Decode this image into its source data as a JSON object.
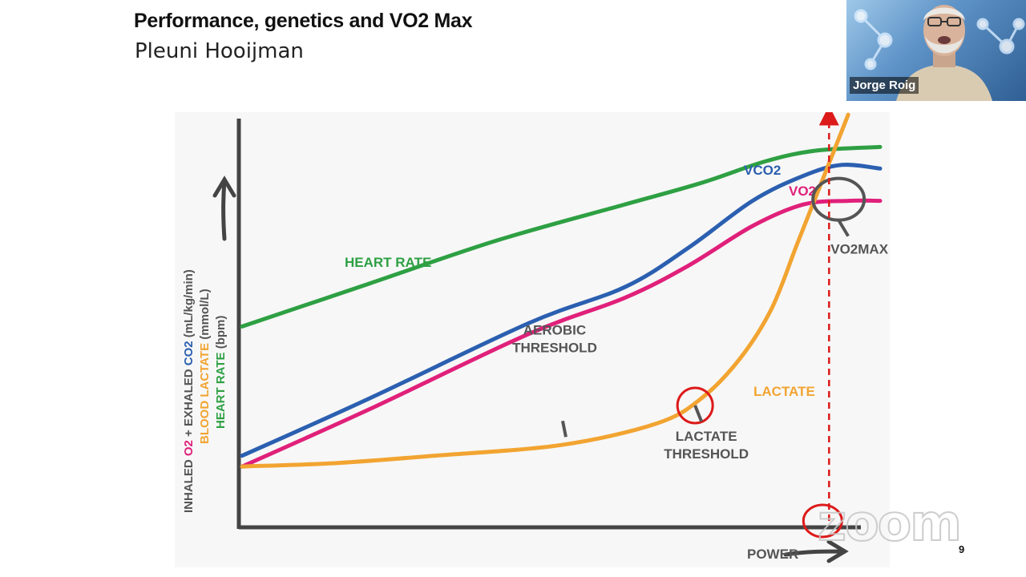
{
  "slide": {
    "title": "Performance, genetics and VO2 Max",
    "author": "Pleuni Hooijman",
    "page_number": "9"
  },
  "video": {
    "participant_name": "Jorge Roig"
  },
  "watermark": "zoom",
  "colors": {
    "heart_rate": "#2ea043",
    "vco2": "#2b5fb0",
    "vo2": "#e0207a",
    "lactate": "#f2a431",
    "axis": "#444444",
    "annotation": "#dd1a1a",
    "label_gray": "#555555"
  },
  "chart_data": {
    "type": "line",
    "xlabel": "POWER",
    "ylabel_lines": [
      {
        "parts": [
          {
            "text": "INHALED ",
            "color": "#555555"
          },
          {
            "text": "O2",
            "color": "#e0207a"
          },
          {
            "text": " + EXHALED ",
            "color": "#555555"
          },
          {
            "text": "CO2",
            "color": "#2b5fb0"
          },
          {
            "text": " (mL/kg/min)",
            "color": "#555555"
          }
        ]
      },
      {
        "parts": [
          {
            "text": "BLOOD LACTATE",
            "color": "#f2a431"
          },
          {
            "text": " (mmol/L)",
            "color": "#555555"
          }
        ]
      },
      {
        "parts": [
          {
            "text": "HEART RATE",
            "color": "#2ea043"
          },
          {
            "text": " (bpm)",
            "color": "#555555"
          }
        ]
      }
    ],
    "x_range": [
      0,
      100
    ],
    "y_range": [
      0,
      100
    ],
    "series": [
      {
        "name": "HEART RATE",
        "label": "HEART RATE",
        "color": "#2ea043",
        "x": [
          0,
          20,
          40,
          60,
          72,
          82,
          90,
          100
        ],
        "y": [
          47,
          59,
          71,
          81,
          87,
          93,
          96,
          97
        ]
      },
      {
        "name": "VCO2",
        "label": "VCO2",
        "color": "#2b5fb0",
        "x": [
          0,
          20,
          45,
          60,
          70,
          80,
          88,
          94,
          100
        ],
        "y": [
          11,
          27,
          48,
          58,
          69,
          82,
          89,
          92,
          91
        ]
      },
      {
        "name": "VO2",
        "label": "VO2",
        "color": "#e0207a",
        "x": [
          0,
          20,
          45,
          60,
          70,
          80,
          88,
          95,
          100
        ],
        "y": [
          8,
          24,
          45,
          55,
          64,
          75,
          81,
          82,
          82
        ]
      },
      {
        "name": "LACTATE",
        "label": "LACTATE",
        "color": "#f2a431",
        "x": [
          0,
          15,
          30,
          50,
          65,
          72,
          78,
          83,
          87,
          91,
          95
        ],
        "y": [
          8,
          9,
          11,
          14,
          20,
          27,
          38,
          52,
          70,
          88,
          106
        ]
      }
    ],
    "annotations": [
      {
        "text_lines": [
          "AEROBIC",
          "THRESHOLD"
        ],
        "point": [
          51,
          14
        ]
      },
      {
        "text_lines": [
          "LACTATE",
          "THRESHOLD"
        ],
        "point": [
          71,
          25
        ]
      },
      {
        "text_lines": [
          "VO2MAX"
        ],
        "point": [
          96,
          82
        ]
      }
    ],
    "vo2max_x": 92
  }
}
